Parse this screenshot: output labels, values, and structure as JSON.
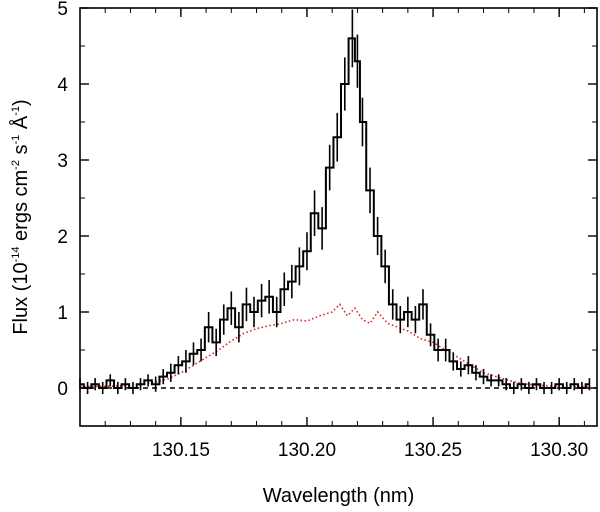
{
  "chart_data": {
    "type": "line",
    "xlabel": "Wavelength (nm)",
    "ylabel": {
      "prefix": "Flux (10",
      "exp1": "-14",
      "mid1": " ergs cm",
      "exp2": "-2",
      "mid2": " s",
      "exp3": "-1",
      "mid3": " Å",
      "exp4": "-1",
      "suffix": ")"
    },
    "xlim": [
      130.11,
      130.315
    ],
    "ylim": [
      -0.5,
      5.0
    ],
    "xticks": [
      130.15,
      130.2,
      130.25,
      130.3
    ],
    "xtick_labels": [
      "130.15",
      "130.20",
      "130.25",
      "130.30"
    ],
    "yticks": [
      0,
      1,
      2,
      3,
      4,
      5
    ],
    "ytick_labels": [
      "0",
      "1",
      "2",
      "3",
      "4",
      "5"
    ],
    "zero_line": {
      "y": 0,
      "style": "dashed",
      "color": "#000000"
    },
    "series": [
      {
        "style": "step-with-errorbars",
        "color": "#000000",
        "x": [
          130.11,
          130.113,
          130.116,
          130.119,
          130.122,
          130.125,
          130.128,
          130.131,
          130.134,
          130.137,
          130.14,
          130.143,
          130.146,
          130.149,
          130.152,
          130.155,
          130.158,
          130.161,
          130.164,
          130.167,
          130.17,
          130.173,
          130.176,
          130.179,
          130.182,
          130.185,
          130.188,
          130.191,
          130.194,
          130.197,
          130.2,
          130.203,
          130.206,
          130.209,
          130.212,
          130.215,
          130.218,
          130.22,
          130.222,
          130.225,
          130.228,
          130.231,
          130.234,
          130.237,
          130.24,
          130.243,
          130.246,
          130.249,
          130.252,
          130.255,
          130.258,
          130.261,
          130.264,
          130.267,
          130.27,
          130.273,
          130.276,
          130.279,
          130.282,
          130.285,
          130.288,
          130.291,
          130.294,
          130.297,
          130.3,
          130.303,
          130.306,
          130.309,
          130.312
        ],
        "y": [
          0.05,
          0.0,
          0.05,
          0.0,
          0.1,
          0.0,
          0.05,
          0.0,
          0.05,
          0.1,
          0.05,
          0.15,
          0.2,
          0.3,
          0.35,
          0.45,
          0.5,
          0.8,
          0.6,
          0.9,
          1.05,
          0.8,
          1.1,
          1.0,
          1.15,
          1.2,
          1.0,
          1.3,
          1.4,
          1.6,
          1.8,
          2.3,
          2.1,
          2.9,
          3.3,
          4.0,
          4.6,
          4.3,
          3.5,
          2.6,
          2.0,
          1.6,
          1.1,
          0.9,
          1.0,
          0.9,
          1.1,
          0.7,
          0.5,
          0.5,
          0.35,
          0.25,
          0.3,
          0.2,
          0.15,
          0.1,
          0.1,
          0.05,
          0.0,
          0.05,
          0.0,
          0.05,
          0.0,
          0.0,
          0.05,
          0.0,
          0.05,
          0.0,
          0.05
        ],
        "err": [
          0.08,
          0.08,
          0.08,
          0.08,
          0.08,
          0.08,
          0.08,
          0.08,
          0.08,
          0.08,
          0.1,
          0.1,
          0.12,
          0.12,
          0.15,
          0.15,
          0.15,
          0.2,
          0.18,
          0.2,
          0.22,
          0.2,
          0.22,
          0.2,
          0.22,
          0.22,
          0.2,
          0.22,
          0.22,
          0.25,
          0.25,
          0.3,
          0.28,
          0.3,
          0.32,
          0.35,
          0.38,
          0.35,
          0.32,
          0.3,
          0.25,
          0.22,
          0.2,
          0.18,
          0.2,
          0.18,
          0.2,
          0.15,
          0.15,
          0.15,
          0.12,
          0.1,
          0.12,
          0.1,
          0.1,
          0.08,
          0.08,
          0.08,
          0.08,
          0.08,
          0.08,
          0.08,
          0.08,
          0.08,
          0.08,
          0.08,
          0.08,
          0.08,
          0.08
        ]
      },
      {
        "style": "dotted",
        "color": "#dd2222",
        "x": [
          130.11,
          130.115,
          130.12,
          130.125,
          130.13,
          130.135,
          130.14,
          130.145,
          130.15,
          130.155,
          130.16,
          130.165,
          130.17,
          130.175,
          130.18,
          130.185,
          130.19,
          130.195,
          130.2,
          130.205,
          130.21,
          130.213,
          130.216,
          130.219,
          130.222,
          130.225,
          130.228,
          130.232,
          130.236,
          130.24,
          130.245,
          130.25,
          130.255,
          130.26,
          130.265,
          130.27,
          130.275,
          130.28,
          130.285,
          130.29,
          130.295,
          130.3,
          130.305,
          130.312
        ],
        "y": [
          0.02,
          0.02,
          0.02,
          0.03,
          0.03,
          0.05,
          0.08,
          0.12,
          0.2,
          0.3,
          0.4,
          0.5,
          0.62,
          0.72,
          0.78,
          0.82,
          0.85,
          0.9,
          0.88,
          0.95,
          1.0,
          1.1,
          0.95,
          1.05,
          0.9,
          0.85,
          1.0,
          0.85,
          0.8,
          0.75,
          0.65,
          0.6,
          0.5,
          0.4,
          0.3,
          0.2,
          0.15,
          0.1,
          0.06,
          0.04,
          0.03,
          0.02,
          0.02,
          0.02
        ]
      }
    ]
  }
}
